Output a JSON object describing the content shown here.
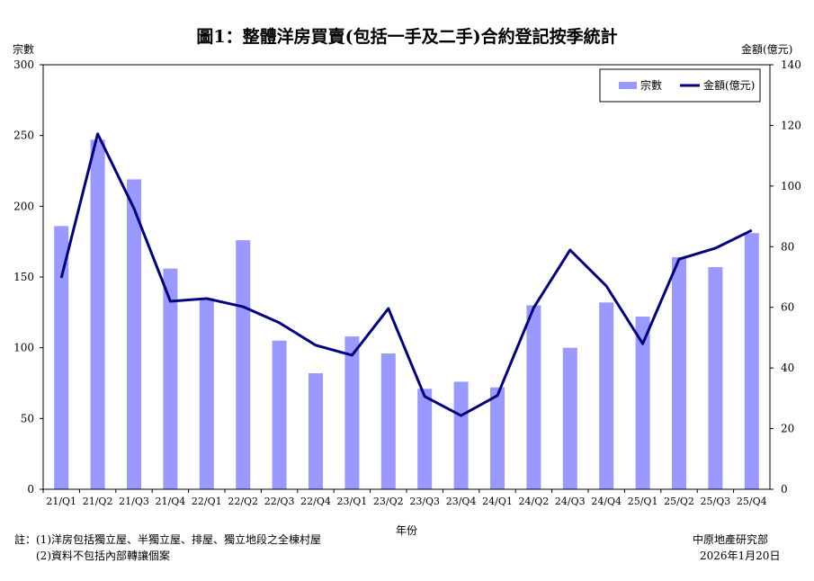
{
  "chart_data": {
    "type": "bar+line",
    "title": "圖1：整體洋房買賣(包括一手及二手)合約登記按季統計",
    "xlabel": "年份",
    "ylabel": "宗數",
    "y2label": "金額(億元)",
    "ylim": [
      0,
      300
    ],
    "y2lim": [
      0,
      140
    ],
    "yticks": [
      0,
      50,
      100,
      150,
      200,
      250,
      300
    ],
    "y2ticks": [
      0,
      20,
      40,
      60,
      80,
      100,
      120,
      140
    ],
    "legend_position": "top-right",
    "categories": [
      "21/Q1",
      "21/Q2",
      "21/Q3",
      "21/Q4",
      "22/Q1",
      "22/Q2",
      "22/Q3",
      "22/Q4",
      "23/Q1",
      "23/Q2",
      "23/Q3",
      "23/Q4",
      "24/Q1",
      "24/Q2",
      "24/Q3",
      "24/Q4",
      "25/Q1",
      "25/Q2",
      "25/Q3",
      "25/Q4"
    ],
    "series": [
      {
        "name": "宗數",
        "type": "bar",
        "axis": "left",
        "color": "#9999ff",
        "values": [
          186,
          247,
          219,
          156,
          135,
          176,
          105,
          82,
          108,
          96,
          71,
          76,
          72,
          130,
          100,
          132,
          122,
          164,
          157,
          181
        ]
      },
      {
        "name": "金額(億元)",
        "type": "line",
        "axis": "right",
        "color": "#000080",
        "values": [
          69.7,
          117.2,
          92.6,
          62.0,
          62.9,
          60.2,
          54.9,
          47.5,
          44.2,
          59.6,
          30.6,
          24.3,
          30.9,
          59.9,
          78.9,
          67.0,
          48.0,
          75.9,
          79.5,
          85.4
        ]
      }
    ]
  },
  "notes": {
    "line1": "註：(1)洋房包括獨立屋、半獨立屋、排屋、獨立地段之全棟村屋",
    "line2": "(2)資料不包括內部轉讓個案"
  },
  "source": {
    "org": "中原地產研究部",
    "date": "2026年1月20日"
  }
}
